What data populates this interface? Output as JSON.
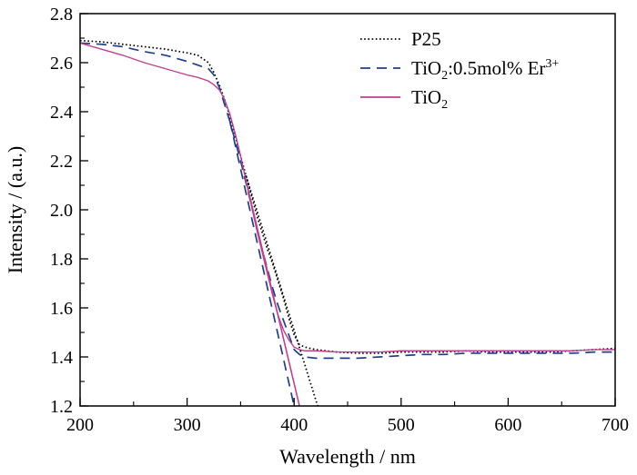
{
  "chart_data": {
    "type": "line",
    "title": "",
    "xlabel": "Wavelength / nm",
    "ylabel": "Intensity / (a.u.)",
    "xlim": [
      200,
      700
    ],
    "ylim": [
      1.2,
      2.8
    ],
    "xticks": [
      200,
      300,
      400,
      500,
      600,
      700
    ],
    "yticks": [
      1.2,
      1.4,
      1.6,
      1.8,
      2.0,
      2.2,
      2.4,
      2.6,
      2.8
    ],
    "xtick_labels": [
      "200",
      "300",
      "400",
      "500",
      "600",
      "700"
    ],
    "ytick_labels": [
      "1.2",
      "1.4",
      "1.6",
      "1.8",
      "2.0",
      "2.2",
      "2.4",
      "2.6",
      "2.8"
    ],
    "grid": false,
    "legend_position": "top-right",
    "series": [
      {
        "name": "P25",
        "name_parts": {
          "base": "P25",
          "sub": "",
          "rest": "",
          "sup": ""
        },
        "style": "dotted",
        "color": "#000000",
        "x": [
          200,
          220,
          240,
          260,
          280,
          300,
          310,
          320,
          325,
          330,
          335,
          340,
          345,
          350,
          355,
          360,
          365,
          370,
          375,
          380,
          385,
          390,
          395,
          400,
          405,
          410,
          420,
          440,
          460,
          480,
          500,
          520,
          540,
          560,
          580,
          600,
          620,
          640,
          660,
          680,
          700
        ],
        "y": [
          2.69,
          2.685,
          2.675,
          2.665,
          2.655,
          2.64,
          2.63,
          2.6,
          2.56,
          2.51,
          2.45,
          2.38,
          2.3,
          2.22,
          2.14,
          2.06,
          1.98,
          1.91,
          1.84,
          1.78,
          1.71,
          1.64,
          1.56,
          1.49,
          1.45,
          1.44,
          1.43,
          1.42,
          1.415,
          1.415,
          1.42,
          1.42,
          1.42,
          1.425,
          1.42,
          1.42,
          1.42,
          1.42,
          1.425,
          1.43,
          1.435
        ]
      },
      {
        "name_parts": {
          "base": "TiO",
          "sub": "2",
          "rest": ":0.5mol% Er",
          "sup": "3+"
        },
        "name": "TiO2:0.5mol% Er3+",
        "style": "dashed",
        "color": "#1f3f8f",
        "x": [
          200,
          220,
          240,
          260,
          280,
          300,
          310,
          320,
          325,
          330,
          335,
          340,
          345,
          350,
          355,
          360,
          365,
          370,
          375,
          380,
          385,
          390,
          395,
          400,
          405,
          410,
          420,
          440,
          460,
          480,
          500,
          520,
          540,
          560,
          580,
          600,
          620,
          640,
          660,
          680,
          700
        ],
        "y": [
          2.68,
          2.675,
          2.665,
          2.645,
          2.63,
          2.605,
          2.59,
          2.575,
          2.55,
          2.5,
          2.43,
          2.36,
          2.28,
          2.2,
          2.11,
          2.02,
          1.93,
          1.84,
          1.76,
          1.68,
          1.61,
          1.55,
          1.49,
          1.43,
          1.41,
          1.4,
          1.395,
          1.395,
          1.395,
          1.4,
          1.405,
          1.41,
          1.41,
          1.415,
          1.415,
          1.415,
          1.415,
          1.415,
          1.415,
          1.42,
          1.42
        ]
      },
      {
        "name_parts": {
          "base": "TiO",
          "sub": "2",
          "rest": "",
          "sup": ""
        },
        "name": "TiO2",
        "style": "solid",
        "color": "#c0408f",
        "x": [
          200,
          220,
          240,
          260,
          280,
          300,
          310,
          320,
          325,
          330,
          335,
          340,
          345,
          350,
          355,
          360,
          365,
          370,
          375,
          380,
          385,
          390,
          395,
          400,
          405,
          410,
          420,
          440,
          460,
          480,
          500,
          520,
          540,
          560,
          580,
          600,
          620,
          640,
          660,
          680,
          700
        ],
        "y": [
          2.68,
          2.655,
          2.63,
          2.6,
          2.575,
          2.55,
          2.54,
          2.525,
          2.51,
          2.49,
          2.45,
          2.39,
          2.31,
          2.22,
          2.12,
          2.02,
          1.92,
          1.83,
          1.74,
          1.65,
          1.57,
          1.51,
          1.47,
          1.44,
          1.43,
          1.425,
          1.425,
          1.42,
          1.42,
          1.42,
          1.425,
          1.425,
          1.425,
          1.425,
          1.425,
          1.425,
          1.425,
          1.425,
          1.425,
          1.43,
          1.43
        ]
      }
    ],
    "tangent_lines": [
      {
        "series": "TiO2",
        "color": "#c0408f",
        "from": [
          355,
          2.12
        ],
        "to": [
          405,
          1.2
        ]
      },
      {
        "series": "TiO2:0.5mol% Er3+",
        "color": "#1f3f8f",
        "from": [
          340,
          2.36
        ],
        "to": [
          400,
          1.2
        ]
      },
      {
        "series": "P25",
        "color": "#000000",
        "from": [
          355,
          2.14
        ],
        "to": [
          422,
          1.2
        ]
      }
    ]
  }
}
